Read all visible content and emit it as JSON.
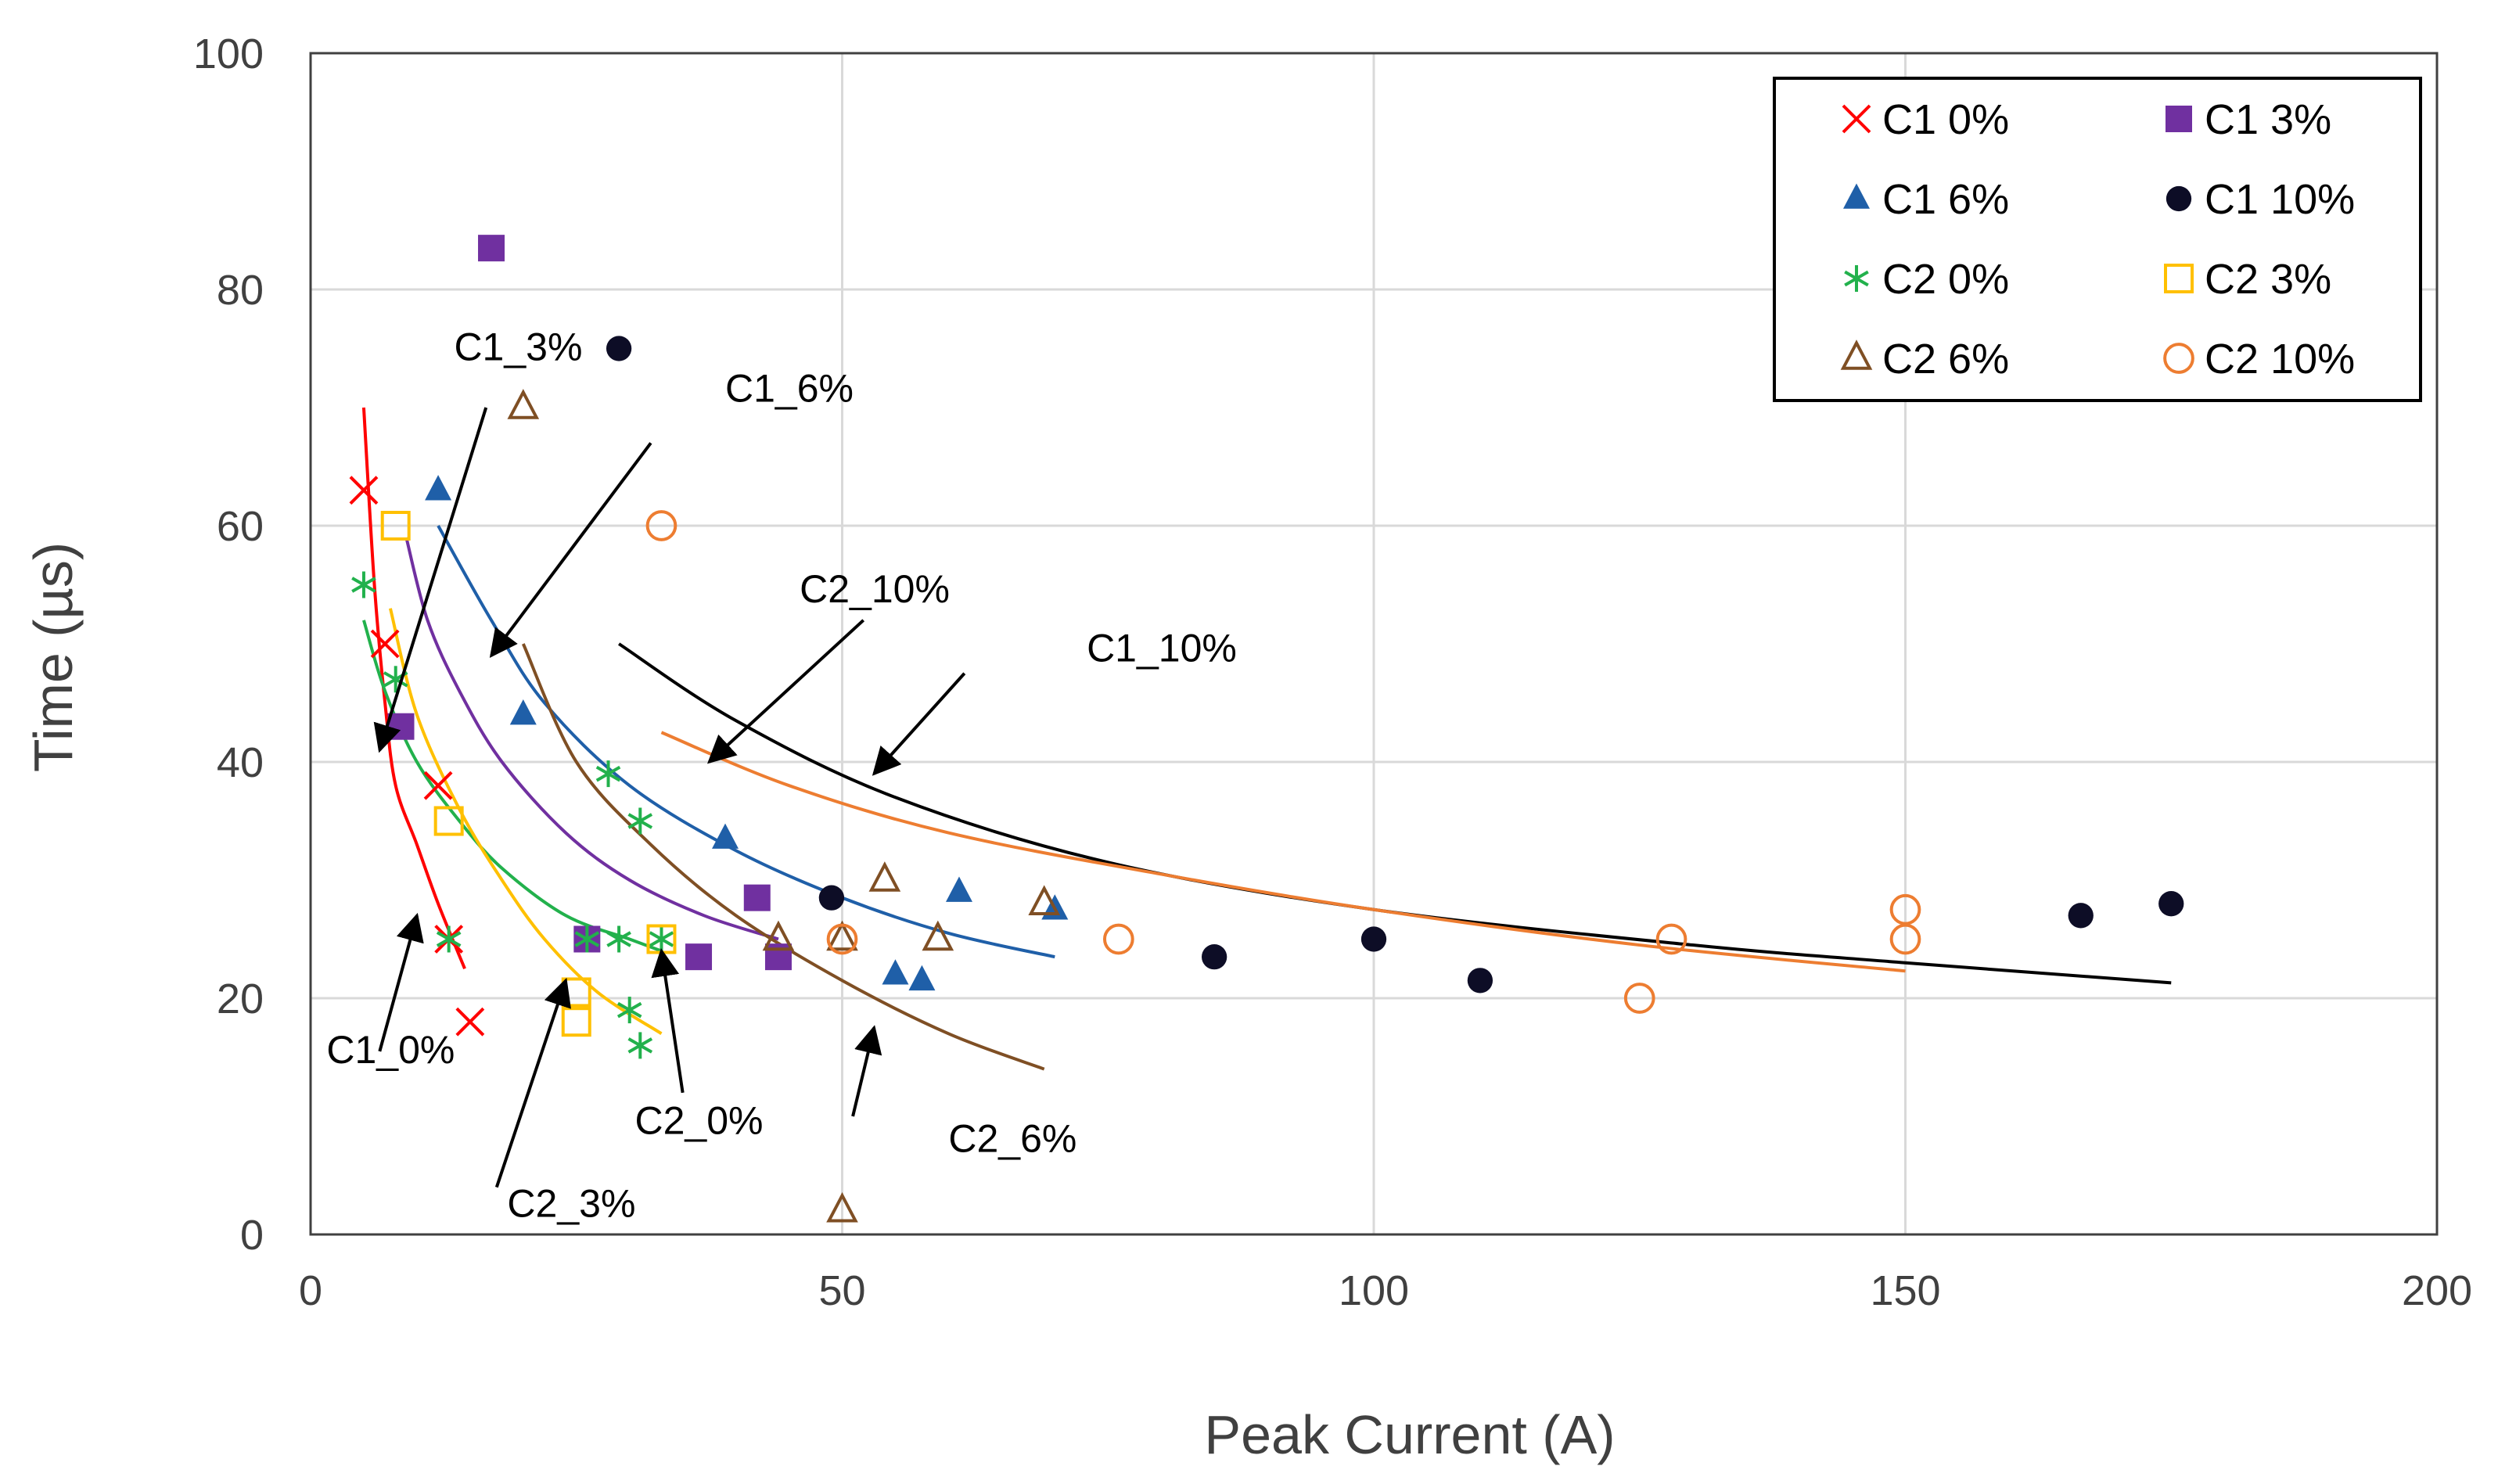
{
  "chart_data": {
    "type": "scatter",
    "xlabel": "Peak Current (A)",
    "ylabel": "Time (µs)",
    "xlim": [
      0,
      200
    ],
    "ylim": [
      0,
      100
    ],
    "xticks": [
      0,
      50,
      100,
      150,
      200
    ],
    "yticks": [
      0,
      20,
      40,
      60,
      80,
      100
    ],
    "grid": true,
    "legend_position": "top-right",
    "series": [
      {
        "name": "C1 0%",
        "marker": "x",
        "color": "#ff0000",
        "points": [
          [
            5,
            63
          ],
          [
            7,
            50
          ],
          [
            12,
            38
          ],
          [
            13,
            25
          ],
          [
            15,
            18
          ]
        ]
      },
      {
        "name": "C1 3%",
        "marker": "square",
        "color": "#7030a0",
        "points": [
          [
            17,
            83.5
          ],
          [
            8.5,
            43
          ],
          [
            26,
            25
          ],
          [
            36.5,
            23.5
          ],
          [
            42,
            28.5
          ],
          [
            44,
            23.5
          ]
        ]
      },
      {
        "name": "C1 6%",
        "marker": "triangle",
        "color": "#1f5fa8",
        "points": [
          [
            12,
            63
          ],
          [
            20,
            44
          ],
          [
            39,
            33.5
          ],
          [
            55,
            22
          ],
          [
            57.5,
            21.5
          ],
          [
            61,
            29
          ],
          [
            70,
            27.5
          ]
        ]
      },
      {
        "name": "C1 10%",
        "marker": "circle",
        "color": "#0d0d26",
        "points": [
          [
            29,
            75
          ],
          [
            49,
            28.5
          ],
          [
            85,
            23.5
          ],
          [
            100,
            25
          ],
          [
            110,
            21.5
          ],
          [
            166.5,
            27
          ],
          [
            175,
            28
          ]
        ]
      },
      {
        "name": "C2 0%",
        "marker": "asterisk",
        "color": "#22b14c",
        "points": [
          [
            5,
            55
          ],
          [
            8,
            47
          ],
          [
            13,
            25
          ],
          [
            26,
            25
          ],
          [
            28,
            39
          ],
          [
            29,
            25
          ],
          [
            31,
            35
          ],
          [
            30,
            19
          ],
          [
            31,
            16
          ],
          [
            33,
            25
          ]
        ]
      },
      {
        "name": "C2 3%",
        "marker": "open-square",
        "color": "#ffc000",
        "points": [
          [
            8,
            60
          ],
          [
            13,
            35
          ],
          [
            25,
            20.5
          ],
          [
            25,
            18
          ],
          [
            33,
            25
          ]
        ]
      },
      {
        "name": "C2 6%",
        "marker": "open-triangle",
        "color": "#7f4f24",
        "points": [
          [
            20,
            70
          ],
          [
            44,
            25
          ],
          [
            50,
            25
          ],
          [
            54,
            30
          ],
          [
            59,
            25
          ],
          [
            69,
            28
          ],
          [
            50,
            2
          ]
        ]
      },
      {
        "name": "C2 10%",
        "marker": "open-circle",
        "color": "#ed7d31",
        "points": [
          [
            33,
            60
          ],
          [
            50,
            25
          ],
          [
            76,
            25
          ],
          [
            125,
            20
          ],
          [
            128,
            25
          ],
          [
            150,
            25
          ],
          [
            150,
            27.5
          ]
        ]
      }
    ],
    "trendlines": [
      {
        "label": "C1_0%",
        "color": "#ff0000",
        "points": [
          [
            5,
            70
          ],
          [
            6,
            55
          ],
          [
            7,
            45
          ],
          [
            8,
            38
          ],
          [
            10,
            33
          ],
          [
            12,
            28
          ],
          [
            14.5,
            22.5
          ]
        ]
      },
      {
        "label": "C1_3%",
        "color": "#7030a0",
        "points": [
          [
            9,
            59
          ],
          [
            11,
            52
          ],
          [
            14,
            46
          ],
          [
            18,
            40
          ],
          [
            24,
            34
          ],
          [
            30,
            30
          ],
          [
            37,
            27
          ],
          [
            44,
            25
          ]
        ]
      },
      {
        "label": "C1_6%",
        "color": "#1f5fa8",
        "points": [
          [
            12,
            60
          ],
          [
            17,
            52
          ],
          [
            22,
            45
          ],
          [
            30,
            38
          ],
          [
            40,
            32.5
          ],
          [
            50,
            28.5
          ],
          [
            60,
            25.5
          ],
          [
            70,
            23.5
          ]
        ]
      },
      {
        "label": "C1_10%",
        "color": "#000000",
        "points": [
          [
            29,
            50
          ],
          [
            40,
            43.5
          ],
          [
            55,
            37
          ],
          [
            75,
            31.5
          ],
          [
            100,
            27.5
          ],
          [
            130,
            24.5
          ],
          [
            150,
            23
          ],
          [
            175,
            21.3
          ]
        ]
      },
      {
        "label": "C2_0%",
        "color": "#22b14c",
        "points": [
          [
            5,
            52
          ],
          [
            7,
            46
          ],
          [
            10,
            40
          ],
          [
            14,
            35
          ],
          [
            18,
            31
          ],
          [
            24,
            27
          ],
          [
            30,
            25
          ],
          [
            33,
            24
          ]
        ]
      },
      {
        "label": "C2_3%",
        "color": "#ffc000",
        "points": [
          [
            7.5,
            53
          ],
          [
            10,
            44
          ],
          [
            14,
            36
          ],
          [
            18,
            30
          ],
          [
            22,
            25
          ],
          [
            27,
            20.5
          ],
          [
            33,
            17
          ]
        ]
      },
      {
        "label": "C2_6%",
        "color": "#7f4f24",
        "points": [
          [
            20,
            50
          ],
          [
            25,
            40
          ],
          [
            32,
            33
          ],
          [
            40,
            27
          ],
          [
            50,
            21.5
          ],
          [
            60,
            17
          ],
          [
            69,
            14
          ]
        ]
      },
      {
        "label": "C2_10%",
        "color": "#ed7d31",
        "points": [
          [
            33,
            42.5
          ],
          [
            45,
            38
          ],
          [
            60,
            34
          ],
          [
            80,
            30.5
          ],
          [
            100,
            27.5
          ],
          [
            125,
            24.5
          ],
          [
            150,
            22.3
          ]
        ]
      }
    ],
    "annotations": [
      {
        "text": "C1_3%",
        "label_at": [
          13.5,
          74
        ],
        "arrow_from": [
          16.5,
          70
        ],
        "arrow_to": [
          6.5,
          41
        ]
      },
      {
        "text": "C1_6%",
        "label_at": [
          39,
          70.5
        ],
        "arrow_from": [
          32,
          67
        ],
        "arrow_to": [
          17,
          49
        ]
      },
      {
        "text": "C2_10%",
        "label_at": [
          46,
          53.5
        ],
        "arrow_from": [
          52,
          52
        ],
        "arrow_to": [
          37.5,
          40
        ]
      },
      {
        "text": "C1_10%",
        "label_at": [
          73,
          48.5
        ],
        "arrow_from": [
          61.5,
          47.5
        ],
        "arrow_to": [
          53,
          39
        ]
      },
      {
        "text": "C1_0%",
        "label_at": [
          1.5,
          14.5
        ],
        "arrow_from": [
          6.5,
          15.5
        ],
        "arrow_to": [
          10,
          27
        ]
      },
      {
        "text": "C2_3%",
        "label_at": [
          18.5,
          1.5
        ],
        "arrow_from": [
          17.5,
          4
        ],
        "arrow_to": [
          24,
          21.5
        ]
      },
      {
        "text": "C2_0%",
        "label_at": [
          30.5,
          8.5
        ],
        "arrow_from": [
          35,
          12
        ],
        "arrow_to": [
          33,
          24
        ]
      },
      {
        "text": "C2_6%",
        "label_at": [
          60,
          7
        ],
        "arrow_from": [
          51,
          10
        ],
        "arrow_to": [
          53,
          17.5
        ]
      }
    ]
  }
}
